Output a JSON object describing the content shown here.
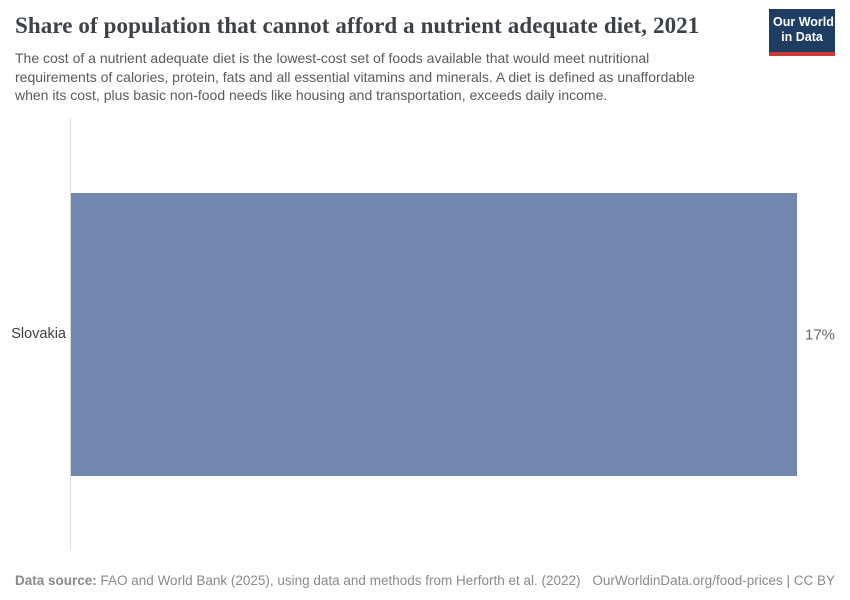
{
  "header": {
    "title": "Share of population that cannot afford a nutrient adequate diet, 2021",
    "subtitle_lines": [
      "The cost of a nutrient adequate diet is the lowest-cost set of foods available that would meet nutritional",
      "requirements of calories, protein, fats and all essential vitamins and minerals. A diet is defined as unaffordable",
      "when its cost, plus basic non-food needs like housing and transportation, exceeds daily income."
    ],
    "logo_line1": "Our World",
    "logo_line2": "in Data"
  },
  "chart_data": {
    "type": "bar",
    "orientation": "horizontal",
    "title": "Share of population that cannot afford a nutrient adequate diet, 2021",
    "categories": [
      "Slovakia"
    ],
    "values": [
      17
    ],
    "value_labels": [
      "17%"
    ],
    "unit": "%",
    "xlim": [
      0,
      17
    ],
    "grid": false,
    "legend": "none",
    "bar_color": "#7187ad"
  },
  "footer": {
    "source_label": "Data source:",
    "source_text": " FAO and World Bank (2025), using data and methods from Herforth et al. (2022)",
    "right_text": "OurWorldinData.org/food-prices | CC BY"
  },
  "colors": {
    "bar": "#7187ad",
    "axis_line": "#dcdcdc",
    "title_text": "#3d4248",
    "subtitle_text": "#5b5b5b",
    "footer_text": "#8a8a8a",
    "logo_bg": "#1d3d63",
    "logo_accent": "#cc3b31",
    "background": "#ffffff"
  }
}
